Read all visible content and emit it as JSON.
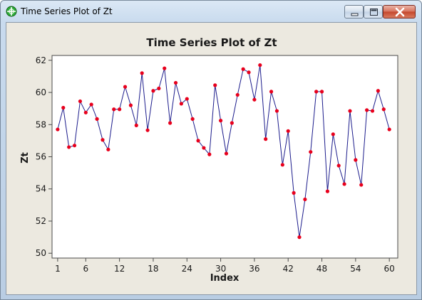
{
  "window": {
    "title": "Time Series Plot of Zt",
    "icon": "minitab-crosshair-icon",
    "controls": [
      "minimize-icon",
      "maximize-icon",
      "close-icon"
    ]
  },
  "chart_data": {
    "type": "line",
    "title": "Time Series Plot of Zt",
    "xlabel": "Index",
    "ylabel": "Zt",
    "x_ticks": [
      1,
      6,
      12,
      18,
      24,
      30,
      36,
      42,
      48,
      54,
      60
    ],
    "y_ticks": [
      50,
      52,
      54,
      56,
      58,
      60,
      62
    ],
    "xlim": [
      0,
      61.5
    ],
    "ylim": [
      49.7,
      62.3
    ],
    "grid": false,
    "series": [
      {
        "line_color": "#1c1c8c",
        "marker_color": "#e8001c",
        "x": [
          1,
          2,
          3,
          4,
          5,
          6,
          7,
          8,
          9,
          10,
          11,
          12,
          13,
          14,
          15,
          16,
          17,
          18,
          19,
          20,
          21,
          22,
          23,
          24,
          25,
          26,
          27,
          28,
          29,
          30,
          31,
          32,
          33,
          34,
          35,
          36,
          37,
          38,
          39,
          40,
          41,
          42,
          43,
          44,
          45,
          46,
          47,
          48,
          49,
          50,
          51,
          52,
          53,
          54,
          55,
          56,
          57,
          58,
          59,
          60
        ],
        "values": [
          57.7,
          59.05,
          56.6,
          56.7,
          59.45,
          58.75,
          59.25,
          58.35,
          57.05,
          56.45,
          58.95,
          58.95,
          60.35,
          59.2,
          57.95,
          61.2,
          57.65,
          60.1,
          60.25,
          61.5,
          58.1,
          60.6,
          59.3,
          59.6,
          58.35,
          57.0,
          56.55,
          56.15,
          60.45,
          58.25,
          56.2,
          58.1,
          59.85,
          61.45,
          61.25,
          59.55,
          61.7,
          57.1,
          60.05,
          58.85,
          55.5,
          57.6,
          53.75,
          51.0,
          53.35,
          56.3,
          60.05,
          60.05,
          53.85,
          57.4,
          55.45,
          54.3,
          58.85,
          55.8,
          54.25,
          58.9,
          58.85,
          60.1,
          58.95,
          57.7
        ]
      }
    ]
  }
}
